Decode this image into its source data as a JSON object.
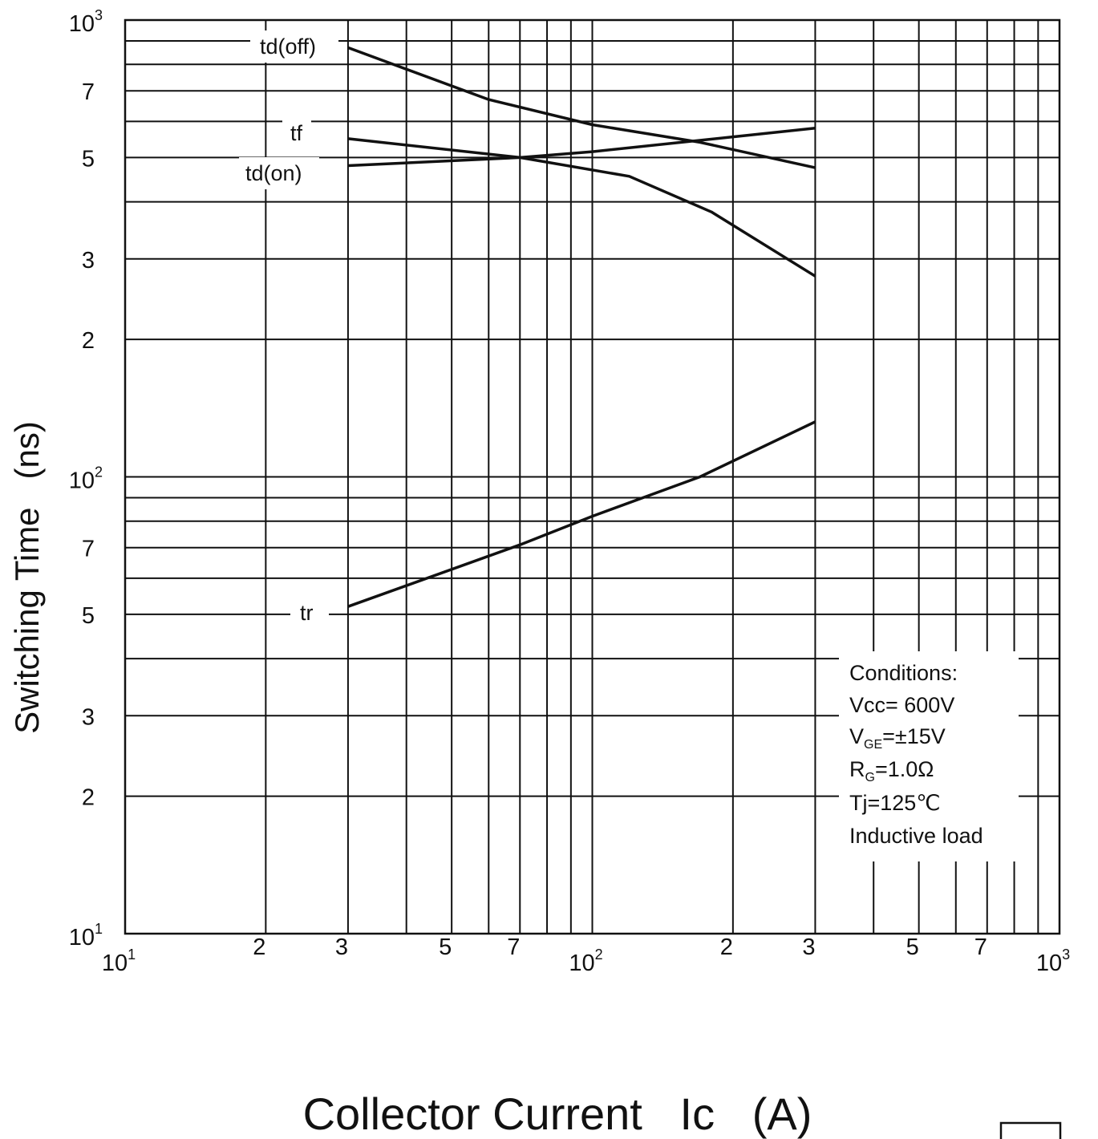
{
  "chart_data": {
    "type": "line",
    "x_scale": "log",
    "y_scale": "log",
    "xlim": [
      10,
      1000
    ],
    "ylim": [
      10,
      1000
    ],
    "xlabel": "Collector Current   Ic   (A)",
    "ylabel": "Switching Time   (ns)",
    "grid": true,
    "x_ticks": [
      {
        "value": 10,
        "base": "10",
        "exp": "1"
      },
      {
        "value": 20,
        "label": "2"
      },
      {
        "value": 30,
        "label": "3"
      },
      {
        "value": 50,
        "label": "5"
      },
      {
        "value": 70,
        "label": "7"
      },
      {
        "value": 100,
        "base": "10",
        "exp": "2"
      },
      {
        "value": 200,
        "label": "2"
      },
      {
        "value": 300,
        "label": "3"
      },
      {
        "value": 500,
        "label": "5"
      },
      {
        "value": 700,
        "label": "7"
      },
      {
        "value": 1000,
        "base": "10",
        "exp": "3"
      }
    ],
    "y_ticks": [
      {
        "value": 10,
        "base": "10",
        "exp": "1"
      },
      {
        "value": 20,
        "label": "2"
      },
      {
        "value": 30,
        "label": "3"
      },
      {
        "value": 50,
        "label": "5"
      },
      {
        "value": 70,
        "label": "7"
      },
      {
        "value": 100,
        "base": "10",
        "exp": "2"
      },
      {
        "value": 200,
        "label": "2"
      },
      {
        "value": 300,
        "label": "3"
      },
      {
        "value": 500,
        "label": "5"
      },
      {
        "value": 700,
        "label": "7"
      },
      {
        "value": 1000,
        "base": "10",
        "exp": "3"
      }
    ],
    "series": [
      {
        "name": "td(off)",
        "x": [
          30,
          60,
          100,
          170,
          300
        ],
        "y": [
          870,
          670,
          590,
          540,
          475
        ]
      },
      {
        "name": "tf",
        "x": [
          30,
          70,
          120,
          180,
          300
        ],
        "y": [
          550,
          500,
          455,
          380,
          275
        ]
      },
      {
        "name": "td(on)",
        "x": [
          30,
          70,
          100,
          200,
          300
        ],
        "y": [
          480,
          500,
          515,
          555,
          580
        ]
      },
      {
        "name": "tr",
        "x": [
          30,
          70,
          100,
          170,
          300
        ],
        "y": [
          52,
          71,
          82,
          100,
          132
        ]
      }
    ],
    "annotations": {
      "conditions_title": "Conditions:",
      "vcc": {
        "main": "Vcc= 600V"
      },
      "vge": {
        "main": "V",
        "sub": "GE",
        "rest": "=±15V"
      },
      "rg": {
        "main": "R",
        "sub": "G",
        "rest": "=1.0Ω"
      },
      "tj": "Tj=125℃",
      "load": "Inductive load"
    }
  }
}
